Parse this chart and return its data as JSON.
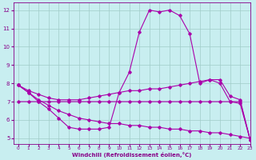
{
  "background_color": "#c8eef0",
  "line_color": "#aa00aa",
  "grid_color": "#a0ccc8",
  "xlabel": "Windchill (Refroidissement éolien,°C)",
  "xlim": [
    -0.5,
    23
  ],
  "ylim": [
    4.7,
    12.4
  ],
  "yticks": [
    5,
    6,
    7,
    8,
    9,
    10,
    11,
    12
  ],
  "xticks": [
    0,
    1,
    2,
    3,
    4,
    5,
    6,
    7,
    8,
    9,
    10,
    11,
    12,
    13,
    14,
    15,
    16,
    17,
    18,
    19,
    20,
    21,
    22,
    23
  ],
  "series": [
    {
      "x": [
        0,
        1,
        2,
        3,
        4,
        5,
        6,
        7,
        8,
        9,
        10,
        11,
        12,
        13,
        14,
        15,
        16,
        17,
        18,
        19,
        20,
        21,
        22,
        23
      ],
      "y": [
        7.9,
        7.5,
        7.0,
        6.6,
        6.1,
        5.6,
        5.5,
        5.5,
        5.5,
        5.6,
        7.5,
        8.6,
        10.8,
        12.0,
        11.9,
        12.0,
        11.7,
        10.7,
        8.0,
        8.2,
        8.0,
        7.0,
        6.9,
        4.9
      ]
    },
    {
      "x": [
        0,
        1,
        2,
        3,
        4,
        5,
        6,
        7,
        8,
        9,
        10,
        11,
        12,
        13,
        14,
        15,
        16,
        17,
        18,
        19,
        20,
        21,
        22,
        23
      ],
      "y": [
        7.9,
        7.6,
        7.4,
        7.2,
        7.1,
        7.1,
        7.1,
        7.2,
        7.3,
        7.4,
        7.5,
        7.6,
        7.6,
        7.7,
        7.7,
        7.8,
        7.9,
        8.0,
        8.1,
        8.2,
        8.2,
        7.3,
        7.1,
        4.9
      ]
    },
    {
      "x": [
        0,
        1,
        2,
        3,
        4,
        5,
        6,
        7,
        8,
        9,
        10,
        11,
        12,
        13,
        14,
        15,
        16,
        17,
        18,
        19,
        20,
        21,
        22,
        23
      ],
      "y": [
        7.0,
        7.0,
        7.0,
        7.0,
        7.0,
        7.0,
        7.0,
        7.0,
        7.0,
        7.0,
        7.0,
        7.0,
        7.0,
        7.0,
        7.0,
        7.0,
        7.0,
        7.0,
        7.0,
        7.0,
        7.0,
        7.0,
        7.0,
        4.9
      ]
    },
    {
      "x": [
        0,
        1,
        2,
        3,
        4,
        5,
        6,
        7,
        8,
        9,
        10,
        11,
        12,
        13,
        14,
        15,
        16,
        17,
        18,
        19,
        20,
        21,
        22,
        23
      ],
      "y": [
        7.9,
        7.5,
        7.1,
        6.8,
        6.5,
        6.3,
        6.1,
        6.0,
        5.9,
        5.8,
        5.8,
        5.7,
        5.7,
        5.6,
        5.6,
        5.5,
        5.5,
        5.4,
        5.4,
        5.3,
        5.3,
        5.2,
        5.1,
        5.0
      ]
    }
  ]
}
